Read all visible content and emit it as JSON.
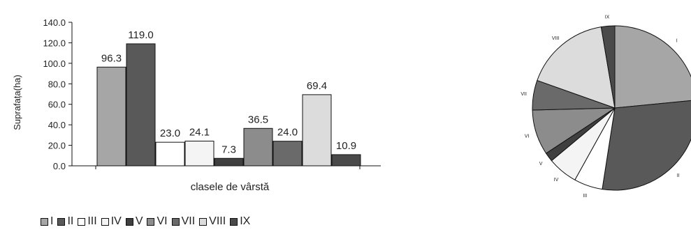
{
  "chart_data": [
    {
      "type": "bar",
      "categories": [
        "I",
        "II",
        "III",
        "IV",
        "V",
        "VI",
        "VII",
        "VIII",
        "IX"
      ],
      "values": [
        96.3,
        119.0,
        23.0,
        24.1,
        7.3,
        36.5,
        24.0,
        69.4,
        10.9
      ],
      "data_labels": [
        "96.3",
        "119.0",
        "23.0",
        "24.1",
        "7.3",
        "36.5",
        "24.0",
        "69.4",
        "10.9"
      ],
      "colors": [
        "#a6a6a6",
        "#595959",
        "#ffffff",
        "#f4f4f4",
        "#3f3f3f",
        "#8c8c8c",
        "#6a6a6a",
        "#dcdcdc",
        "#4a4a4a"
      ],
      "ylabel": "Suprafața(ha)",
      "xlabel": "clasele de vârstă",
      "ylim": [
        0,
        140
      ],
      "yticks": [
        "0.0",
        "20.0",
        "40.0",
        "60.0",
        "80.0",
        "100.0",
        "120.0",
        "140.0"
      ],
      "grid": false,
      "legend_position": "bottom-left"
    },
    {
      "type": "pie",
      "categories": [
        "I",
        "II",
        "III",
        "IV",
        "V",
        "VI",
        "VII",
        "VIII",
        "IX"
      ],
      "values": [
        96.3,
        119.0,
        23.0,
        24.1,
        7.3,
        36.5,
        24.0,
        69.4,
        10.9
      ],
      "colors": [
        "#a6a6a6",
        "#595959",
        "#ffffff",
        "#f4f4f4",
        "#3f3f3f",
        "#8c8c8c",
        "#6a6a6a",
        "#dcdcdc",
        "#4a4a4a"
      ]
    }
  ]
}
